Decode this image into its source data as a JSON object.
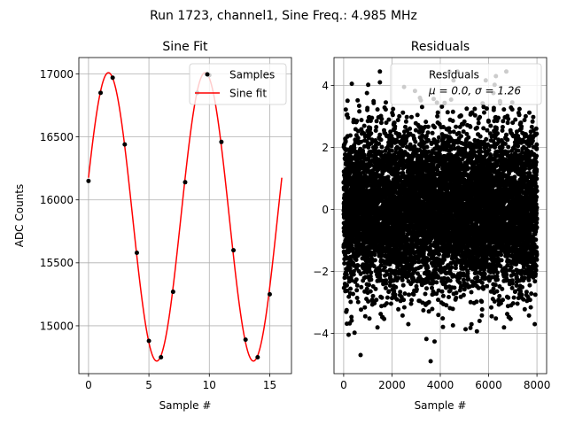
{
  "figure": {
    "suptitle": "Run 1723, channel1, Sine Freq.: 4.985 MHz"
  },
  "chart_data": [
    {
      "type": "scatter+line",
      "title": "Sine Fit",
      "xlabel": "Sample #",
      "ylabel": "ADC Counts",
      "xlim": [
        -0.8,
        16.8
      ],
      "ylim": [
        14620,
        17130
      ],
      "xticks": [
        0,
        5,
        10,
        15
      ],
      "yticks": [
        15000,
        15500,
        16000,
        16500,
        17000
      ],
      "grid": true,
      "legend": {
        "placement": "upper right",
        "entries": [
          "Samples",
          "Sine fit"
        ]
      },
      "series": [
        {
          "name": "Samples",
          "kind": "scatter",
          "color": "#000000",
          "x": [
            0,
            1,
            2,
            3,
            4,
            5,
            6,
            7,
            8,
            9,
            10,
            11,
            12,
            13,
            14,
            15
          ],
          "y": [
            16150,
            16850,
            16970,
            16440,
            15580,
            14880,
            14750,
            15270,
            16140,
            16850,
            16990,
            16460,
            15600,
            14890,
            14750,
            15250
          ]
        },
        {
          "name": "Sine fit",
          "kind": "line",
          "color": "#ff0000",
          "model": {
            "offset": 15865,
            "amplitude": 1145,
            "period": 8.0,
            "peak_at": 1.65,
            "x_range": [
              0,
              16
            ]
          }
        }
      ]
    },
    {
      "type": "scatter",
      "title": "Residuals",
      "xlabel": "Sample #",
      "ylabel": "",
      "xlim": [
        -400,
        8400
      ],
      "ylim": [
        -5.3,
        4.9
      ],
      "xticks": [
        0,
        2000,
        4000,
        6000,
        8000
      ],
      "yticks": [
        -4,
        -2,
        0,
        2,
        4
      ],
      "grid": true,
      "legend": {
        "placement": "upper right",
        "entries": [
          "Residuals",
          "μ = 0.0, σ = 1.26"
        ]
      },
      "series": [
        {
          "name": "Residuals",
          "kind": "scatter",
          "color": "#000000",
          "count": 8000,
          "mean": 0.0,
          "std": 1.26,
          "x_range": [
            0,
            8000
          ],
          "notable_points": [
            {
              "x": 3600,
              "y": -4.9
            },
            {
              "x": 700,
              "y": -4.7
            },
            {
              "x": 2500,
              "y": 3.95
            },
            {
              "x": 6300,
              "y": 4.3
            },
            {
              "x": 1500,
              "y": 4.1
            }
          ]
        }
      ]
    }
  ]
}
